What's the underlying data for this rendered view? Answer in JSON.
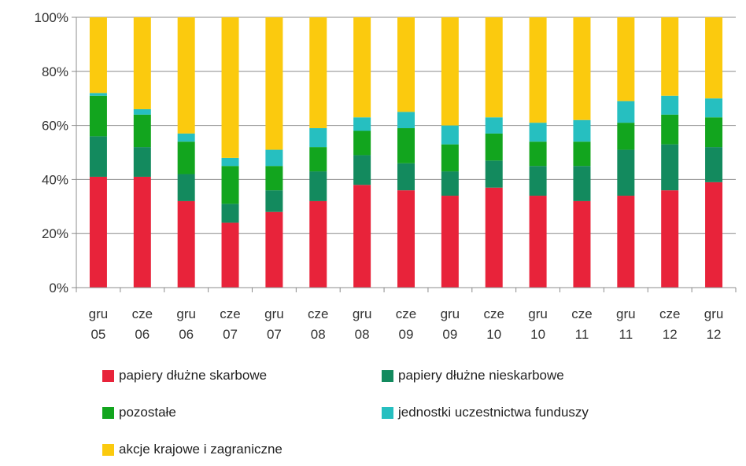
{
  "chart_data": {
    "type": "bar",
    "stacked": true,
    "normalized": true,
    "categories": [
      [
        "gru",
        "05"
      ],
      [
        "cze",
        "06"
      ],
      [
        "gru",
        "06"
      ],
      [
        "cze",
        "07"
      ],
      [
        "gru",
        "07"
      ],
      [
        "cze",
        "08"
      ],
      [
        "gru",
        "08"
      ],
      [
        "cze",
        "09"
      ],
      [
        "gru",
        "09"
      ],
      [
        "cze",
        "10"
      ],
      [
        "gru",
        "10"
      ],
      [
        "cze",
        "11"
      ],
      [
        "gru",
        "11"
      ],
      [
        "cze",
        "12"
      ],
      [
        "gru",
        "12"
      ]
    ],
    "y_ticks": [
      "0%",
      "20%",
      "40%",
      "60%",
      "80%",
      "100%"
    ],
    "ylim": [
      0,
      100
    ],
    "grid": true,
    "legend_position": "bottom",
    "series": [
      {
        "name": "papiery dłużne skarbowe",
        "color": "#e8233a",
        "values": [
          41,
          41,
          32,
          24,
          28,
          32,
          38,
          36,
          34,
          37,
          34,
          32,
          34,
          36,
          39
        ]
      },
      {
        "name": "papiery dłużne nieskarbowe",
        "color": "#138a5e",
        "values": [
          15,
          11,
          10,
          7,
          8,
          11,
          11,
          10,
          9,
          10,
          11,
          13,
          17,
          17,
          13
        ]
      },
      {
        "name": "pozostałe",
        "color": "#12a51e",
        "values": [
          15,
          12,
          12,
          14,
          9,
          9,
          9,
          13,
          10,
          10,
          9,
          9,
          10,
          11,
          11
        ]
      },
      {
        "name": "jednostki uczestnictwa funduszy",
        "color": "#26bfc0",
        "values": [
          1,
          2,
          3,
          3,
          6,
          7,
          5,
          6,
          7,
          6,
          7,
          8,
          8,
          7,
          7
        ]
      },
      {
        "name": "akcje krajowe i zagraniczne",
        "color": "#fbca0e",
        "values": [
          28,
          34,
          43,
          52,
          49,
          41,
          37,
          35,
          40,
          37,
          39,
          38,
          31,
          29,
          30
        ]
      }
    ]
  }
}
